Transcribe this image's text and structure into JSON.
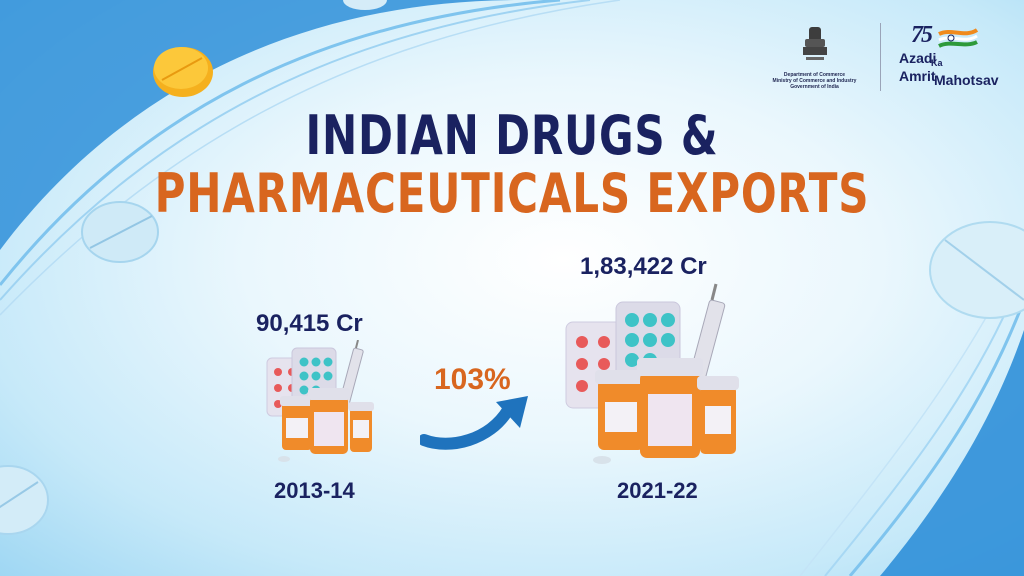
{
  "header": {
    "emblem_lines": [
      "Department of Commerce",
      "Ministry of Commerce and Industry",
      "Government of India"
    ],
    "aka_logo": {
      "number": "75",
      "word1": "Azadi",
      "word2": "Ka",
      "word3": "Amrit",
      "word4": "Mahotsav"
    }
  },
  "title": {
    "line1": "INDIAN DRUGS &",
    "line2": "PHARMACEUTICALS EXPORTS"
  },
  "comparison": {
    "before": {
      "value": "90,415 Cr",
      "year": "2013-14"
    },
    "after": {
      "value": "1,83,422 Cr",
      "year": "2021-22"
    },
    "growth": "103%"
  },
  "colors": {
    "navy": "#1a2260",
    "orange": "#d8661f",
    "accent_blue": "#1f73bd"
  }
}
